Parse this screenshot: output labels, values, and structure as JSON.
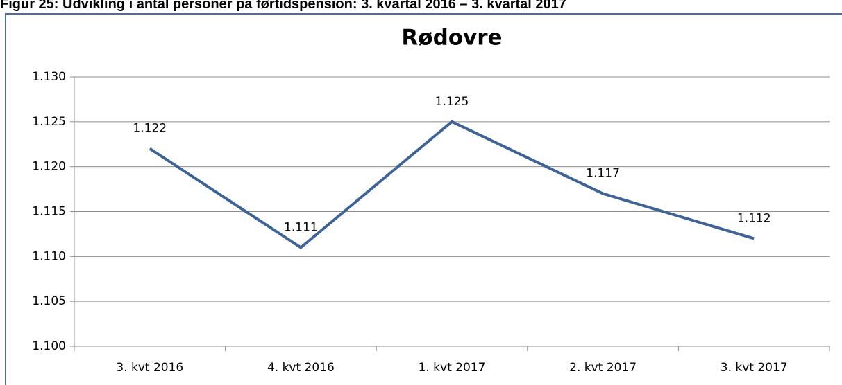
{
  "heading": "Figur 25: Udvikling i antal personer på førtidspension: 3. kvartal 2016 – 3. kvartal 2017",
  "chart_data": {
    "type": "line",
    "title": "Rødovre",
    "categories": [
      "3. kvt 2016",
      "4. kvt 2016",
      "1. kvt 2017",
      "2. kvt 2017",
      "3. kvt 2017"
    ],
    "values": [
      1122,
      1111,
      1125,
      1117,
      1112
    ],
    "value_labels": [
      "1.122",
      "1.111",
      "1.125",
      "1.117",
      "1.112"
    ],
    "color": "#3e6396",
    "ylim": [
      1100,
      1130
    ],
    "yticks": [
      {
        "value": 1100,
        "label": "1.100"
      },
      {
        "value": 1105,
        "label": "1.105"
      },
      {
        "value": 1110,
        "label": "1.110"
      },
      {
        "value": 1115,
        "label": "1.115"
      },
      {
        "value": 1120,
        "label": "1.120"
      },
      {
        "value": 1125,
        "label": "1.125"
      },
      {
        "value": 1130,
        "label": "1.130"
      }
    ],
    "grid": true
  }
}
